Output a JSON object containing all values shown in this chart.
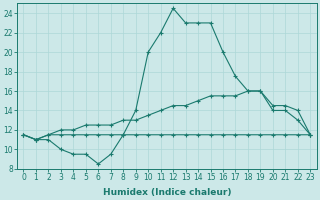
{
  "xlabel": "Humidex (Indice chaleur)",
  "bg_color": "#cce8e8",
  "line_color": "#1a7a6e",
  "xlim": [
    -0.5,
    23.5
  ],
  "ylim": [
    8,
    25
  ],
  "xticks": [
    0,
    1,
    2,
    3,
    4,
    5,
    6,
    7,
    8,
    9,
    10,
    11,
    12,
    13,
    14,
    15,
    16,
    17,
    18,
    19,
    20,
    21,
    22,
    23
  ],
  "yticks": [
    8,
    10,
    12,
    14,
    16,
    18,
    20,
    22,
    24
  ],
  "line1_x": [
    0,
    1,
    2,
    3,
    4,
    5,
    6,
    7,
    8,
    9,
    10,
    11,
    12,
    13,
    14,
    15,
    16,
    17,
    18,
    19,
    20,
    21,
    22,
    23
  ],
  "line1_y": [
    11.5,
    11.0,
    11.0,
    10.0,
    9.5,
    9.5,
    8.5,
    9.5,
    11.5,
    14.0,
    20.0,
    22.0,
    24.5,
    23.0,
    23.0,
    23.0,
    20.0,
    17.5,
    16.0,
    16.0,
    14.0,
    14.0,
    13.0,
    11.5
  ],
  "line2_x": [
    0,
    1,
    2,
    3,
    4,
    5,
    6,
    7,
    8,
    9,
    10,
    11,
    12,
    13,
    14,
    15,
    16,
    17,
    18,
    19,
    20,
    21,
    22,
    23
  ],
  "line2_y": [
    11.5,
    11.0,
    11.5,
    12.0,
    12.0,
    12.5,
    12.5,
    12.5,
    13.0,
    13.0,
    13.5,
    14.0,
    14.5,
    14.5,
    15.0,
    15.5,
    15.5,
    15.5,
    16.0,
    16.0,
    14.5,
    14.5,
    14.0,
    11.5
  ],
  "line3_x": [
    0,
    1,
    2,
    3,
    4,
    5,
    6,
    7,
    8,
    9,
    10,
    11,
    12,
    13,
    14,
    15,
    16,
    17,
    18,
    19,
    20,
    21,
    22,
    23
  ],
  "line3_y": [
    11.5,
    11.0,
    11.5,
    11.5,
    11.5,
    11.5,
    11.5,
    11.5,
    11.5,
    11.5,
    11.5,
    11.5,
    11.5,
    11.5,
    11.5,
    11.5,
    11.5,
    11.5,
    11.5,
    11.5,
    11.5,
    11.5,
    11.5,
    11.5
  ],
  "grid_color": "#add8d8",
  "marker": "+",
  "markersize": 3,
  "linewidth": 0.8,
  "tick_fontsize": 5.5,
  "xlabel_fontsize": 6.5
}
